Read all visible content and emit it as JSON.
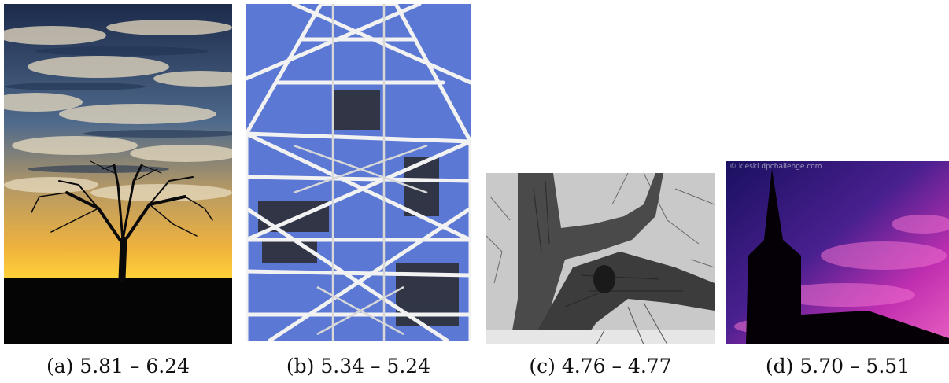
{
  "figures": [
    {
      "id": "a",
      "caption": "(a) 5.81 – 6.24"
    },
    {
      "id": "b",
      "caption": "(b) 5.34 – 5.24"
    },
    {
      "id": "c",
      "caption": "(c) 4.76 – 4.77"
    },
    {
      "id": "d",
      "caption": "(d) 5.70 – 5.51",
      "watermark": "© kleskl.dpchallenge.com"
    }
  ]
}
